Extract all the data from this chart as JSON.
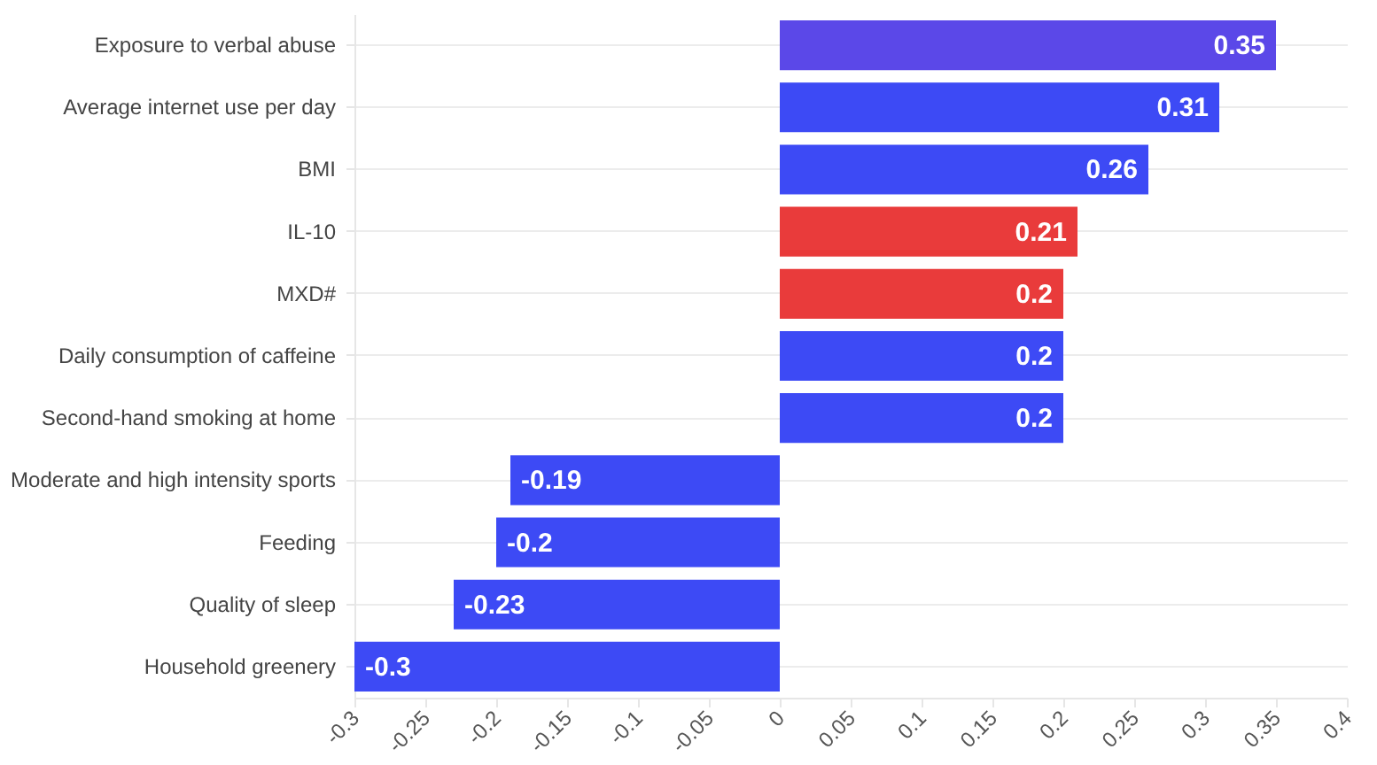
{
  "chart_data": {
    "type": "bar",
    "orientation": "horizontal",
    "categories": [
      "Exposure to verbal abuse",
      "Average internet use per day",
      "BMI",
      "IL-10",
      "MXD#",
      "Daily consumption of caffeine",
      "Second-hand smoking at home",
      "Moderate and high intensity sports",
      "Feeding",
      "Quality of sleep",
      "Household greenery"
    ],
    "values": [
      0.35,
      0.31,
      0.26,
      0.21,
      0.2,
      0.2,
      0.2,
      -0.19,
      -0.2,
      -0.23,
      -0.3
    ],
    "colors": [
      "#5b48e8",
      "#3d4af5",
      "#3d4af5",
      "#e93b3b",
      "#e93b3b",
      "#3d4af5",
      "#3d4af5",
      "#3d4af5",
      "#3d4af5",
      "#3d4af5",
      "#3d4af5"
    ],
    "xlim": [
      -0.3,
      0.4
    ],
    "xticks": [
      -0.3,
      -0.25,
      -0.2,
      -0.15,
      -0.1,
      -0.05,
      0,
      0.05,
      0.1,
      0.15,
      0.2,
      0.25,
      0.3,
      0.35,
      0.4
    ],
    "grid": "y",
    "data_labels": true
  }
}
